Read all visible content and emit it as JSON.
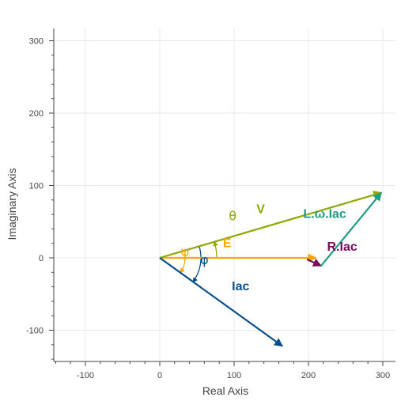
{
  "chart_data": {
    "type": "phasor",
    "xlabel": "Real Axis",
    "ylabel": "Imaginary Axis",
    "xlim": [
      -140,
      310
    ],
    "ylim": [
      -140,
      315
    ],
    "x_ticks": [
      -100,
      0,
      100,
      200,
      300
    ],
    "y_ticks": [
      -100,
      0,
      100,
      200,
      300
    ],
    "x_tick_labels": [
      "-100",
      "0",
      "100",
      "200",
      "300"
    ],
    "y_tick_labels": [
      "-100",
      "0",
      "100",
      "200",
      "300"
    ],
    "grid": true,
    "vectors": [
      {
        "id": "E",
        "label": "E",
        "from": [
          0,
          0
        ],
        "to": [
          210,
          0
        ],
        "color": "#FFA500",
        "label_at": [
          85,
          15
        ]
      },
      {
        "id": "V",
        "label": "V",
        "from": [
          0,
          0
        ],
        "to": [
          298,
          90
        ],
        "color": "#8FA800",
        "label_at": [
          130,
          62
        ]
      },
      {
        "id": "Iac",
        "label": "Iac",
        "from": [
          0,
          0
        ],
        "to": [
          165,
          -122
        ],
        "color": "#0B4F8A",
        "label_at": [
          97,
          -45
        ]
      },
      {
        "id": "RIac",
        "label": "R.Iac",
        "from": [
          198,
          -2
        ],
        "to": [
          217,
          -11
        ],
        "color": "#7A0B5A",
        "label_at": [
          225,
          10
        ]
      },
      {
        "id": "LwIac",
        "label": "L.ω.Iac",
        "from": [
          217,
          -11
        ],
        "to": [
          298,
          90
        ],
        "color": "#1E9D84",
        "label_at": [
          193,
          55
        ]
      }
    ],
    "angles": [
      {
        "id": "theta",
        "label": "θ",
        "color": "#8FA800",
        "label_at": [
          98,
          52
        ]
      },
      {
        "id": "psi",
        "label": "ψ",
        "color": "#FFA500",
        "label_at": [
          34,
          3
        ]
      },
      {
        "id": "phi",
        "label": "φ",
        "color": "#0B4F8A",
        "label_at": [
          60,
          -9
        ]
      }
    ]
  }
}
